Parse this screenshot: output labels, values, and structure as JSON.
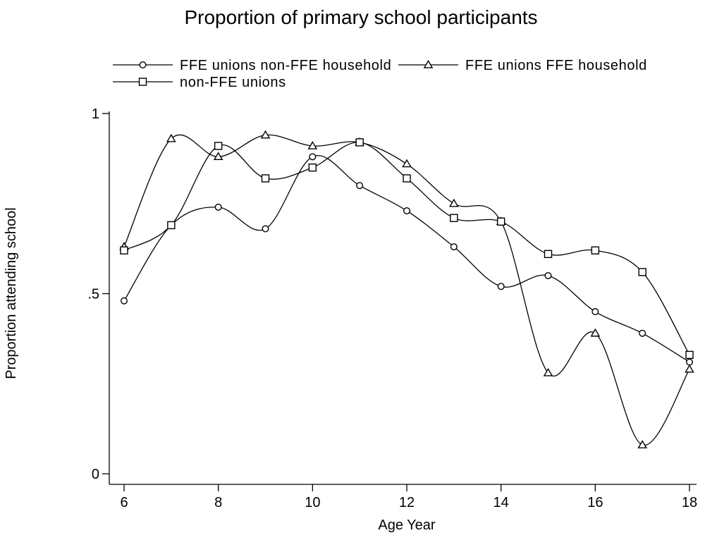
{
  "chart_data": {
    "type": "line",
    "title": "Proportion of primary school participants",
    "xlabel": "Age Year",
    "ylabel": "Proportion attending school",
    "x": [
      6,
      7,
      8,
      9,
      10,
      11,
      12,
      13,
      14,
      15,
      16,
      17,
      18
    ],
    "xlim": [
      6,
      18
    ],
    "ylim": [
      0,
      1
    ],
    "xticks": [
      6,
      8,
      10,
      12,
      14,
      16,
      18
    ],
    "xtick_labels": [
      "6",
      "8",
      "10",
      "12",
      "14",
      "16",
      "18"
    ],
    "yticks": [
      0,
      0.5,
      1
    ],
    "ytick_labels": [
      "0",
      ".5",
      "1"
    ],
    "grid": false,
    "legend_position": "top",
    "series": [
      {
        "name": "FFE unions non-FFE household",
        "marker": "circle",
        "values": [
          0.48,
          0.69,
          0.74,
          0.68,
          0.88,
          0.8,
          0.73,
          0.63,
          0.52,
          0.55,
          0.45,
          0.39,
          0.31
        ]
      },
      {
        "name": "FFE unions FFE household",
        "marker": "triangle",
        "values": [
          0.63,
          0.93,
          0.88,
          0.94,
          0.91,
          0.92,
          0.86,
          0.75,
          0.7,
          0.28,
          0.39,
          0.08,
          0.29
        ]
      },
      {
        "name": "non-FFE unions",
        "marker": "square",
        "values": [
          0.62,
          0.69,
          0.91,
          0.82,
          0.85,
          0.92,
          0.82,
          0.71,
          0.7,
          0.61,
          0.62,
          0.56,
          0.33
        ]
      }
    ]
  }
}
